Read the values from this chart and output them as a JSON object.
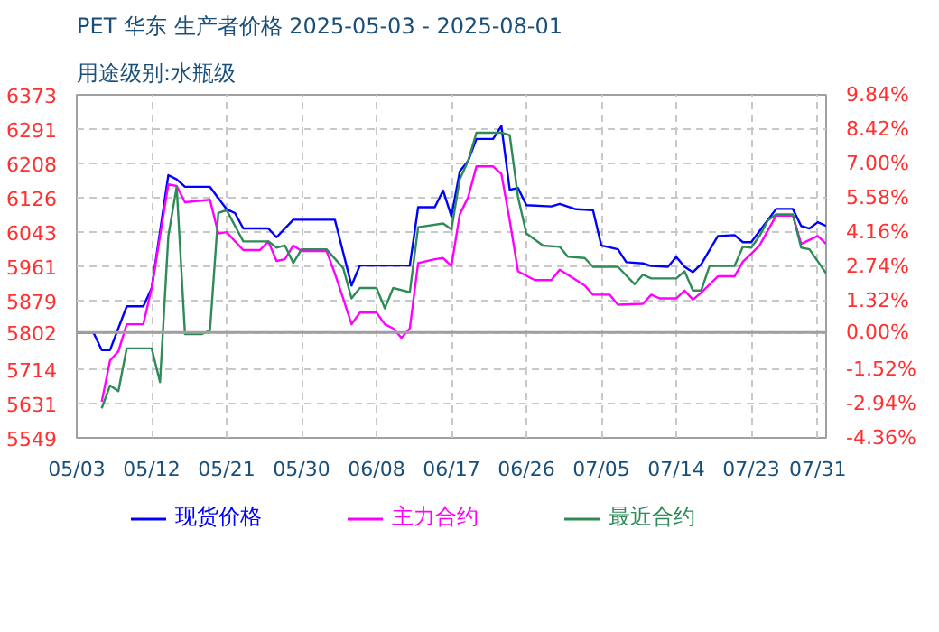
{
  "chart_data": {
    "type": "line",
    "title": "PET 华东 生产者价格 2025-05-03 - 2025-08-01",
    "subtitle": "用途级别:水瓶级",
    "xlim": [
      "2025-05-03",
      "2025-08-01"
    ],
    "xticks": [
      {
        "value": "2025-05-03",
        "label": "05/03"
      },
      {
        "value": "2025-05-12",
        "label": "05/12"
      },
      {
        "value": "2025-05-21",
        "label": "05/21"
      },
      {
        "value": "2025-05-30",
        "label": "05/30"
      },
      {
        "value": "2025-06-08",
        "label": "06/08"
      },
      {
        "value": "2025-06-17",
        "label": "06/17"
      },
      {
        "value": "2025-06-26",
        "label": "06/26"
      },
      {
        "value": "2025-07-05",
        "label": "07/05"
      },
      {
        "value": "2025-07-14",
        "label": "07/14"
      },
      {
        "value": "2025-07-23",
        "label": "07/23"
      },
      {
        "value": "2025-07-31",
        "label": "07/31"
      }
    ],
    "ylim": [
      5549,
      6373
    ],
    "yticks": [
      5549,
      5631,
      5714,
      5802,
      5879,
      5961,
      6043,
      6126,
      6208,
      6291,
      6373
    ],
    "y2lim": [
      -4.36,
      9.84
    ],
    "y2ticks": [
      {
        "value": -4.36,
        "label": "-4.36%"
      },
      {
        "value": -2.94,
        "label": "-2.94%"
      },
      {
        "value": -1.52,
        "label": "-1.52%"
      },
      {
        "value": 0,
        "label": "0.00%"
      },
      {
        "value": 1.32,
        "label": "1.32%"
      },
      {
        "value": 2.74,
        "label": "2.74%"
      },
      {
        "value": 4.16,
        "label": "4.16%"
      },
      {
        "value": 5.58,
        "label": "5.58%"
      },
      {
        "value": 7.0,
        "label": "7.00%"
      },
      {
        "value": 8.42,
        "label": "8.42%"
      },
      {
        "value": 9.84,
        "label": "9.84%"
      }
    ],
    "grid": true,
    "legend": "bottom",
    "ref_lines": [
      {
        "axis": "y",
        "value": 5802,
        "color": "#a0a0a0"
      }
    ],
    "series": [
      {
        "name": "现货价格",
        "color": "#0000ff",
        "x": [
          "2025-05-03",
          "2025-05-05",
          "2025-05-06",
          "2025-05-07",
          "2025-05-09",
          "2025-05-11",
          "2025-05-12",
          "2025-05-14",
          "2025-05-15",
          "2025-05-16",
          "2025-05-19",
          "2025-05-21",
          "2025-05-22",
          "2025-05-23",
          "2025-05-26",
          "2025-05-27",
          "2025-05-29",
          "2025-06-03",
          "2025-06-05",
          "2025-06-06",
          "2025-06-12",
          "2025-06-13",
          "2025-06-15",
          "2025-06-16",
          "2025-06-17",
          "2025-06-18",
          "2025-06-19",
          "2025-06-20",
          "2025-06-22",
          "2025-06-23",
          "2025-06-24",
          "2025-06-25",
          "2025-06-26",
          "2025-06-29",
          "2025-06-30",
          "2025-07-02",
          "2025-07-04",
          "2025-07-05",
          "2025-07-07",
          "2025-07-08",
          "2025-07-10",
          "2025-07-11",
          "2025-07-13",
          "2025-07-14",
          "2025-07-15",
          "2025-07-16",
          "2025-07-17",
          "2025-07-19",
          "2025-07-21",
          "2025-07-22",
          "2025-07-23",
          "2025-07-26",
          "2025-07-28",
          "2025-07-29",
          "2025-07-30",
          "2025-07-31",
          "2025-08-01"
        ],
        "values": [
          5802,
          5802,
          5760,
          5760,
          5865,
          5865,
          5909,
          6180,
          6170,
          6152,
          6152,
          6098,
          6089,
          6052,
          6052,
          6031,
          6073,
          6073,
          5915,
          5963,
          5963,
          6103,
          6103,
          6143,
          6081,
          6189,
          6214,
          6267,
          6267,
          6298,
          6145,
          6149,
          6108,
          6105,
          6111,
          6098,
          6096,
          6011,
          6002,
          5971,
          5968,
          5962,
          5960,
          5984,
          5960,
          5947,
          5966,
          6034,
          6036,
          6019,
          6019,
          6099,
          6099,
          6058,
          6052,
          6067,
          6058
        ]
      },
      {
        "name": "主力合约",
        "color": "#ff00ff",
        "x": [
          "2025-05-06",
          "2025-05-07",
          "2025-05-08",
          "2025-05-09",
          "2025-05-11",
          "2025-05-12",
          "2025-05-14",
          "2025-05-15",
          "2025-05-16",
          "2025-05-19",
          "2025-05-20",
          "2025-05-21",
          "2025-05-23",
          "2025-05-25",
          "2025-05-26",
          "2025-05-27",
          "2025-05-28",
          "2025-05-29",
          "2025-05-30",
          "2025-06-02",
          "2025-06-03",
          "2025-06-04",
          "2025-06-05",
          "2025-06-06",
          "2025-06-08",
          "2025-06-09",
          "2025-06-10",
          "2025-06-11",
          "2025-06-12",
          "2025-06-13",
          "2025-06-15",
          "2025-06-16",
          "2025-06-17",
          "2025-06-18",
          "2025-06-19",
          "2025-06-20",
          "2025-06-22",
          "2025-06-23",
          "2025-06-24",
          "2025-06-25",
          "2025-06-27",
          "2025-06-29",
          "2025-06-30",
          "2025-07-02",
          "2025-07-03",
          "2025-07-04",
          "2025-07-06",
          "2025-07-07",
          "2025-07-10",
          "2025-07-11",
          "2025-07-12",
          "2025-07-14",
          "2025-07-15",
          "2025-07-16",
          "2025-07-17",
          "2025-07-19",
          "2025-07-21",
          "2025-07-22",
          "2025-07-23",
          "2025-07-24",
          "2025-07-26",
          "2025-07-28",
          "2025-07-29",
          "2025-07-31",
          "2025-08-01"
        ],
        "values": [
          5636,
          5735,
          5757,
          5822,
          5822,
          5909,
          6158,
          6154,
          6115,
          6121,
          6040,
          6043,
          6000,
          6000,
          6021,
          5974,
          5978,
          6011,
          5998,
          5998,
          5944,
          5884,
          5822,
          5850,
          5850,
          5822,
          5812,
          5789,
          5812,
          5969,
          5978,
          5981,
          5962,
          6086,
          6127,
          6201,
          6201,
          6183,
          6071,
          5949,
          5928,
          5928,
          5953,
          5928,
          5915,
          5893,
          5893,
          5869,
          5871,
          5893,
          5884,
          5884,
          5903,
          5881,
          5898,
          5937,
          5937,
          5972,
          5991,
          6011,
          6083,
          6083,
          6015,
          6034,
          6015
        ]
      },
      {
        "name": "最近合约",
        "color": "#2e8b57",
        "x": [
          "2025-05-06",
          "2025-05-07",
          "2025-05-08",
          "2025-05-09",
          "2025-05-12",
          "2025-05-13",
          "2025-05-14",
          "2025-05-15",
          "2025-05-16",
          "2025-05-18",
          "2025-05-19",
          "2025-05-20",
          "2025-05-21",
          "2025-05-23",
          "2025-05-26",
          "2025-05-27",
          "2025-05-28",
          "2025-05-29",
          "2025-05-30",
          "2025-06-02",
          "2025-06-04",
          "2025-06-05",
          "2025-06-06",
          "2025-06-08",
          "2025-06-09",
          "2025-06-10",
          "2025-06-12",
          "2025-06-13",
          "2025-06-16",
          "2025-06-17",
          "2025-06-18",
          "2025-06-19",
          "2025-06-20",
          "2025-06-23",
          "2025-06-24",
          "2025-06-25",
          "2025-06-26",
          "2025-06-28",
          "2025-06-30",
          "2025-07-01",
          "2025-07-03",
          "2025-07-04",
          "2025-07-07",
          "2025-07-09",
          "2025-07-10",
          "2025-07-11",
          "2025-07-14",
          "2025-07-15",
          "2025-07-16",
          "2025-07-17",
          "2025-07-18",
          "2025-07-21",
          "2025-07-22",
          "2025-07-23",
          "2025-07-24",
          "2025-07-25",
          "2025-07-26",
          "2025-07-28",
          "2025-07-29",
          "2025-07-30",
          "2025-08-01"
        ],
        "values": [
          5620,
          5675,
          5661,
          5764,
          5764,
          5683,
          6034,
          6152,
          5798,
          5798,
          5807,
          6089,
          6096,
          6021,
          6021,
          6006,
          6011,
          5969,
          6002,
          6002,
          5957,
          5884,
          5909,
          5909,
          5860,
          5909,
          5899,
          6055,
          6064,
          6050,
          6170,
          6214,
          6282,
          6282,
          6276,
          6127,
          6040,
          6011,
          6008,
          5984,
          5981,
          5960,
          5960,
          5918,
          5941,
          5932,
          5932,
          5949,
          5903,
          5903,
          5962,
          5962,
          6008,
          6006,
          6034,
          6071,
          6086,
          6086,
          6006,
          6002,
          5944
        ]
      }
    ]
  }
}
